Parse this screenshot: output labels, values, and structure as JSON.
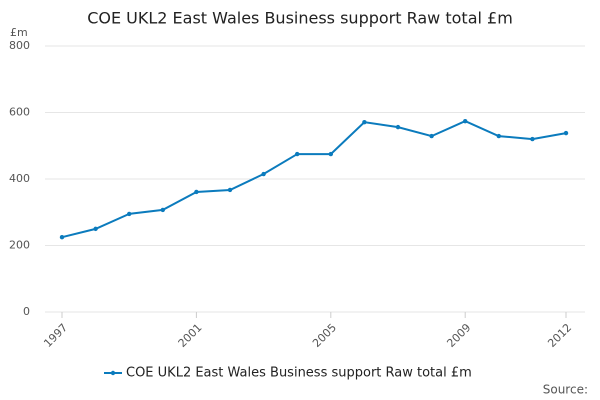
{
  "chart_data": {
    "type": "line",
    "title": "COE UKL2 East Wales Business support Raw total £m",
    "y_unit": "£m",
    "source": "Source:",
    "x": [
      1997,
      1998,
      1999,
      2000,
      2001,
      2002,
      2003,
      2004,
      2005,
      2006,
      2007,
      2008,
      2009,
      2010,
      2011,
      2012
    ],
    "series": [
      {
        "name": "COE UKL2 East Wales Business support Raw total £m",
        "color": "#0b7bbd",
        "values": [
          225,
          250,
          295,
          307,
          361,
          367,
          415,
          475,
          475,
          571,
          556,
          529,
          574,
          529,
          520,
          538
        ]
      }
    ],
    "xlim": [
      1997,
      2012
    ],
    "xticks": [
      1997,
      2001,
      2005,
      2009,
      2012
    ],
    "ylim": [
      0,
      800
    ],
    "yticks": [
      0,
      200,
      400,
      600,
      800
    ],
    "grid": true
  }
}
